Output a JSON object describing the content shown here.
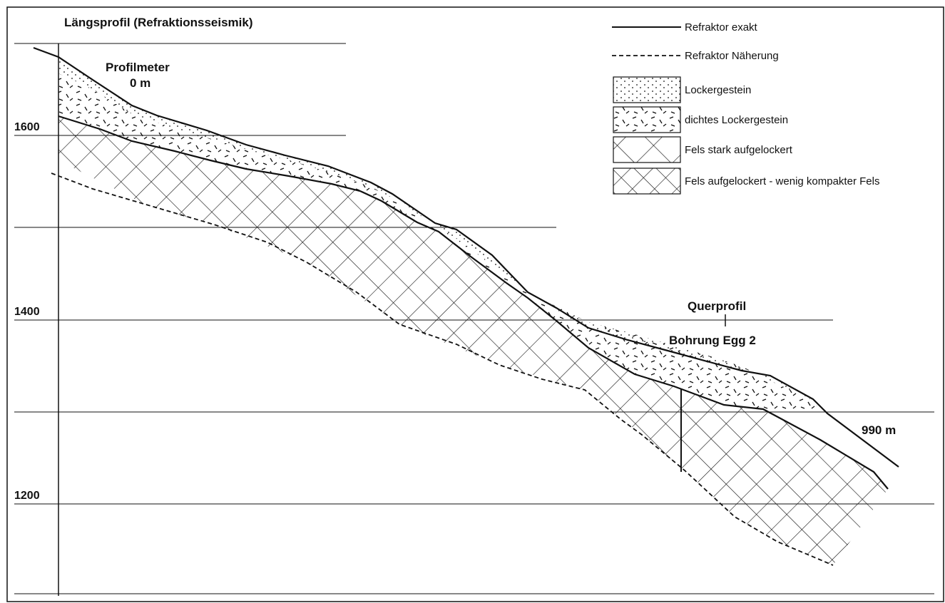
{
  "title": "Längsprofil (Refraktionsseismik)",
  "elevation_labels": {
    "e1600": "1600",
    "e1400": "1400",
    "e1200": "1200"
  },
  "profile_start": {
    "label": "Profilmeter",
    "value": "0 m"
  },
  "profile_end": {
    "value": "990 m"
  },
  "annotations": {
    "cross_section": "Querprofil",
    "borehole": "Bohrung Egg 2"
  },
  "legend": {
    "refractor_exact": "Refraktor exakt",
    "refractor_approx": "Refraktor Näherung",
    "loose_rock": "Lockergestein",
    "dense_loose_rock": "dichtes Lockergestein",
    "rock_heavily_loosened": "Fels stark aufgelockert",
    "rock_loosened": "Fels aufgelockert - wenig kompakter Fels"
  },
  "colors": {
    "ink": "#111111",
    "paper": "#ffffff"
  }
}
